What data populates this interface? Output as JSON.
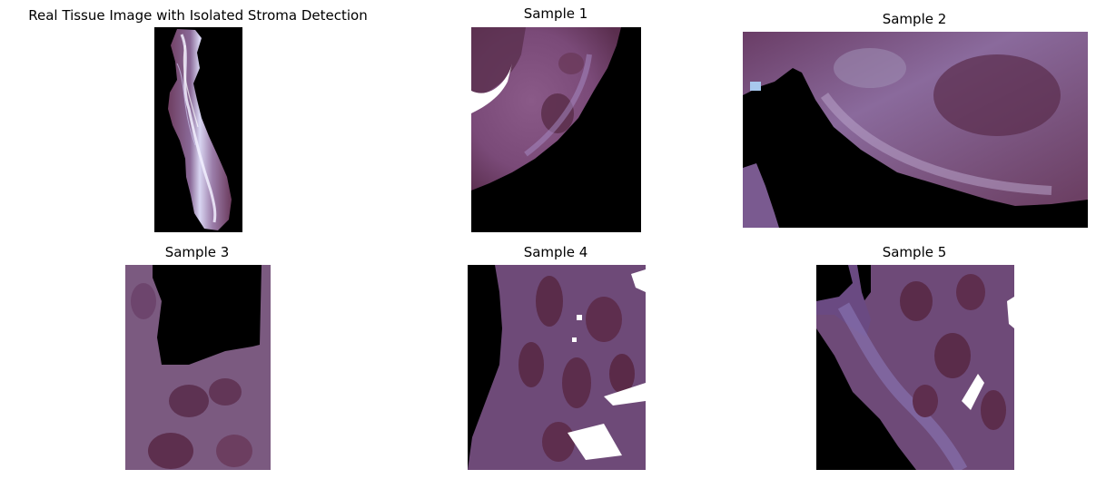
{
  "figure": {
    "main_panel": {
      "title": "Real Tissue Image with Isolated Stroma Detection"
    },
    "samples": [
      {
        "title": "Sample 1"
      },
      {
        "title": "Sample 2"
      },
      {
        "title": "Sample 3"
      },
      {
        "title": "Sample 4"
      },
      {
        "title": "Sample 5"
      }
    ]
  }
}
